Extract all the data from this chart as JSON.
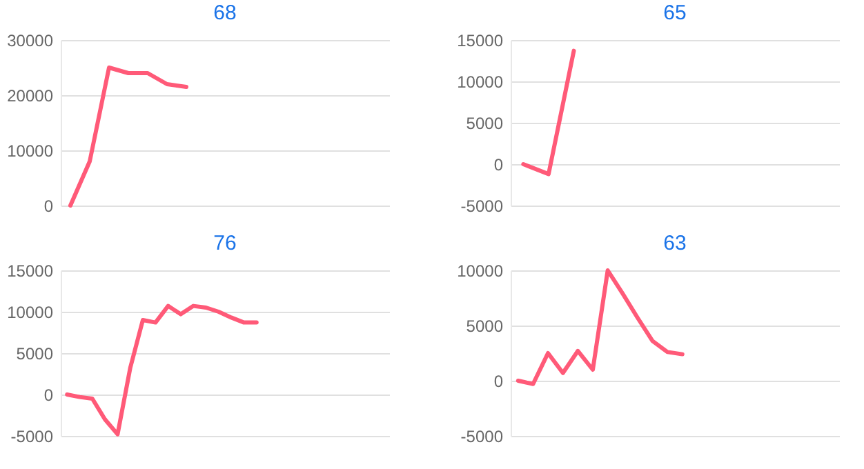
{
  "chart_data": [
    {
      "type": "line",
      "title": "68",
      "categories": [
        null,
        null,
        null,
        null,
        null,
        null,
        null,
        null,
        null,
        null,
        null,
        null,
        null,
        null,
        null,
        null,
        null
      ],
      "series": [
        {
          "color": "#ff5a78",
          "values": [
            0,
            8000,
            25000,
            24000,
            24000,
            22000,
            21500,
            null,
            null,
            null,
            null,
            null,
            null,
            null,
            null,
            null,
            null
          ]
        }
      ],
      "ylim": [
        0,
        30000
      ],
      "yticks": [
        0,
        10000,
        20000,
        30000
      ],
      "grid": "y",
      "tick_labels": "y",
      "legend": false
    },
    {
      "type": "line",
      "title": "65",
      "categories": [
        null,
        null,
        null,
        null,
        null,
        null,
        null,
        null,
        null,
        null,
        null,
        null,
        null
      ],
      "series": [
        {
          "color": "#ff5a78",
          "values": [
            0,
            -1200,
            13700,
            null,
            null,
            null,
            null,
            null,
            null,
            null,
            null,
            null,
            null
          ]
        }
      ],
      "ylim": [
        -5000,
        15000
      ],
      "yticks": [
        -5000,
        0,
        5000,
        10000,
        15000
      ],
      "grid": "y",
      "tick_labels": "y",
      "legend": false
    },
    {
      "type": "line",
      "title": "76",
      "categories": [
        null,
        null,
        null,
        null,
        null,
        null,
        null,
        null,
        null,
        null,
        null,
        null,
        null,
        null,
        null,
        null,
        null,
        null,
        null,
        null,
        null,
        null,
        null,
        null,
        null,
        null
      ],
      "series": [
        {
          "color": "#ff5a78",
          "values": [
            0,
            -300,
            -500,
            -3000,
            -4800,
            3200,
            9000,
            8700,
            10700,
            9700,
            10700,
            10500,
            10000,
            9300,
            8700,
            8700,
            null,
            null,
            null,
            null,
            null,
            null,
            null,
            null,
            null,
            null
          ]
        }
      ],
      "ylim": [
        -5000,
        15000
      ],
      "yticks": [
        -5000,
        0,
        5000,
        10000,
        15000
      ],
      "grid": "y",
      "tick_labels": "y",
      "legend": false
    },
    {
      "type": "line",
      "title": "63",
      "categories": [
        null,
        null,
        null,
        null,
        null,
        null,
        null,
        null,
        null,
        null,
        null,
        null,
        null,
        null,
        null,
        null,
        null,
        null,
        null,
        null,
        null,
        null
      ],
      "series": [
        {
          "color": "#ff5a78",
          "values": [
            0,
            -300,
            2500,
            700,
            2700,
            1000,
            10000,
            7900,
            5700,
            3600,
            2600,
            2400,
            null,
            null,
            null,
            null,
            null,
            null,
            null,
            null,
            null,
            null
          ]
        }
      ],
      "ylim": [
        -5000,
        10000
      ],
      "yticks": [
        -5000,
        0,
        5000,
        10000
      ],
      "grid": "y",
      "tick_labels": "y",
      "legend": false
    }
  ]
}
